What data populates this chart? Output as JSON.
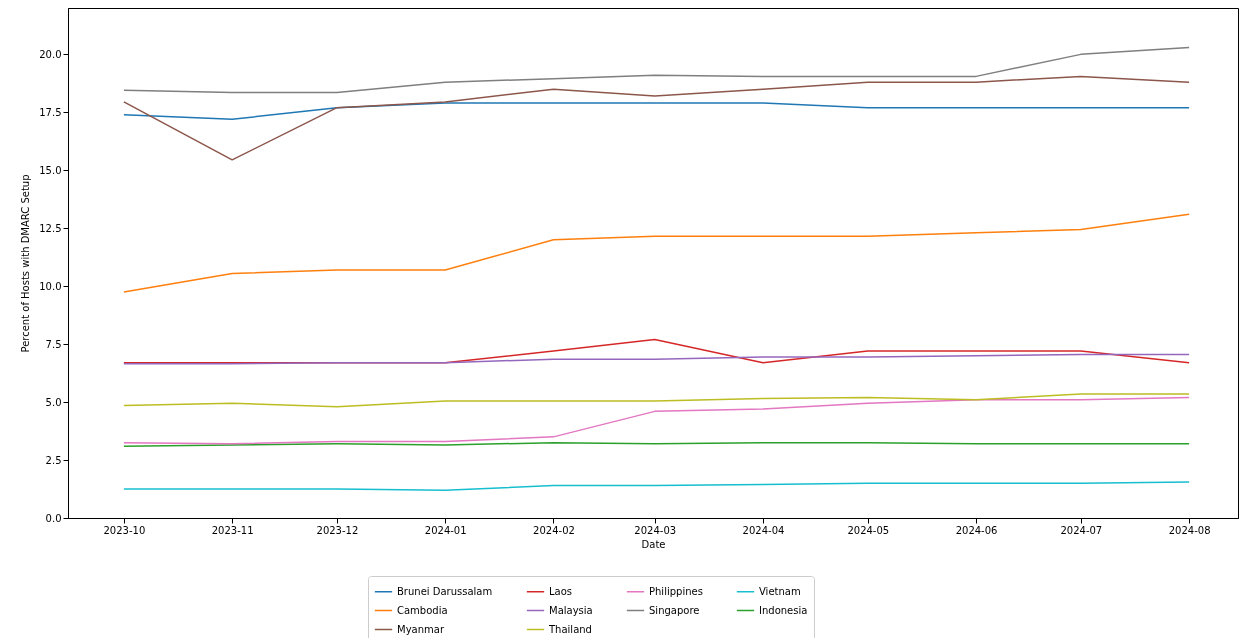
{
  "chart_data": {
    "type": "line",
    "xlabel": "Date",
    "ylabel": "Percent of Hosts with DMARC Setup",
    "x": [
      "2023-10",
      "2023-11",
      "2023-12",
      "2024-01",
      "2024-02",
      "2024-03",
      "2024-04",
      "2024-05",
      "2024-06",
      "2024-07",
      "2024-08"
    ],
    "xlim": [
      "2023-09-15",
      "2024-08-15"
    ],
    "xticks": [
      {
        "value": "2023-10",
        "label": "2023-10"
      },
      {
        "value": "2023-11",
        "label": "2023-11"
      },
      {
        "value": "2023-12",
        "label": "2023-12"
      },
      {
        "value": "2024-01",
        "label": "2024-01"
      },
      {
        "value": "2024-02",
        "label": "2024-02"
      },
      {
        "value": "2024-03",
        "label": "2024-03"
      },
      {
        "value": "2024-04",
        "label": "2024-04"
      },
      {
        "value": "2024-05",
        "label": "2024-05"
      },
      {
        "value": "2024-06",
        "label": "2024-06"
      },
      {
        "value": "2024-07",
        "label": "2024-07"
      },
      {
        "value": "2024-08",
        "label": "2024-08"
      }
    ],
    "ylim": [
      0,
      22.0
    ],
    "yticks": [
      {
        "value": 0,
        "label": "0.0"
      },
      {
        "value": 2.5,
        "label": "2.5"
      },
      {
        "value": 5,
        "label": "5.0"
      },
      {
        "value": 7.5,
        "label": "7.5"
      },
      {
        "value": 10,
        "label": "10.0"
      },
      {
        "value": 12.5,
        "label": "12.5"
      },
      {
        "value": 15,
        "label": "15.0"
      },
      {
        "value": 17.5,
        "label": "17.5"
      },
      {
        "value": 20,
        "label": "20.0"
      }
    ],
    "grid": false,
    "legend": "bottom",
    "line_style": "solid",
    "series": [
      {
        "name": "Brunei Darussalam",
        "color": "#1f77b4",
        "values": [
          17.4,
          17.2,
          17.7,
          17.9,
          17.9,
          17.9,
          17.9,
          17.7,
          17.7,
          17.7,
          17.7
        ]
      },
      {
        "name": "Cambodia",
        "color": "#ff7f0e",
        "values": [
          9.75,
          10.55,
          10.7,
          10.7,
          12.0,
          12.15,
          12.15,
          12.15,
          12.3,
          12.45,
          13.1
        ]
      },
      {
        "name": "Indonesia",
        "color": "#2ca02c",
        "values": [
          3.1,
          3.15,
          3.2,
          3.15,
          3.25,
          3.2,
          3.25,
          3.25,
          3.2,
          3.2,
          3.2
        ]
      },
      {
        "name": "Laos",
        "color": "#d62728",
        "values": [
          6.7,
          6.7,
          6.7,
          6.7,
          7.2,
          7.7,
          6.7,
          7.2,
          7.2,
          7.2,
          6.7
        ]
      },
      {
        "name": "Malaysia",
        "color": "#9467bd",
        "values": [
          6.65,
          6.65,
          6.7,
          6.7,
          6.85,
          6.85,
          6.95,
          6.95,
          7.0,
          7.05,
          7.05
        ]
      },
      {
        "name": "Myanmar",
        "color": "#8c564b",
        "values": [
          17.95,
          15.45,
          17.7,
          17.95,
          18.5,
          18.2,
          18.5,
          18.8,
          18.8,
          19.05,
          18.8
        ]
      },
      {
        "name": "Philippines",
        "color": "#e377c2",
        "values": [
          3.25,
          3.2,
          3.3,
          3.3,
          3.5,
          4.6,
          4.7,
          4.95,
          5.1,
          5.1,
          5.2
        ]
      },
      {
        "name": "Singapore",
        "color": "#7f7f7f",
        "values": [
          18.45,
          18.35,
          18.35,
          18.8,
          18.95,
          19.1,
          19.05,
          19.05,
          19.05,
          20.0,
          20.3
        ]
      },
      {
        "name": "Thailand",
        "color": "#bcbd22",
        "values": [
          4.85,
          4.95,
          4.8,
          5.05,
          5.05,
          5.05,
          5.15,
          5.2,
          5.1,
          5.35,
          5.35
        ]
      },
      {
        "name": "Vietnam",
        "color": "#17becf",
        "values": [
          1.25,
          1.25,
          1.25,
          1.2,
          1.4,
          1.4,
          1.45,
          1.5,
          1.5,
          1.5,
          1.55
        ]
      }
    ]
  }
}
